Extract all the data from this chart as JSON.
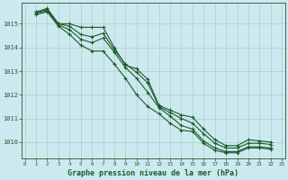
{
  "title": "Graphe pression niveau de la mer (hPa)",
  "background_color": "#cde9f0",
  "grid_color": "#b0d4c8",
  "line_color": "#1a5c2a",
  "ylim": [
    1009.3,
    1015.9
  ],
  "xlim": [
    -0.3,
    23.3
  ],
  "yticks": [
    1010,
    1011,
    1012,
    1013,
    1014,
    1015
  ],
  "xticks": [
    0,
    1,
    2,
    3,
    4,
    5,
    6,
    7,
    8,
    9,
    10,
    11,
    12,
    13,
    14,
    15,
    16,
    17,
    18,
    19,
    20,
    21,
    22,
    23
  ],
  "series": [
    {
      "x": [
        1,
        2,
        3,
        4,
        5,
        6,
        7,
        8,
        9,
        10,
        11,
        12,
        13,
        14,
        15,
        16,
        17,
        18,
        19,
        20,
        21,
        22
      ],
      "y": [
        1015.5,
        1015.65,
        1015.0,
        1015.0,
        1014.85,
        1014.85,
        1014.85,
        1014.0,
        1013.25,
        1013.1,
        1012.65,
        1011.55,
        1011.35,
        1011.15,
        1011.05,
        1010.55,
        1010.1,
        1009.85,
        1009.85,
        1010.1,
        1010.05,
        1010.0
      ]
    },
    {
      "x": [
        1,
        2,
        3,
        4,
        5,
        6,
        7,
        8,
        9,
        10,
        11,
        12,
        13,
        14,
        15,
        16,
        17,
        18,
        19,
        20,
        21,
        22
      ],
      "y": [
        1015.5,
        1015.6,
        1015.0,
        1014.9,
        1014.55,
        1014.45,
        1014.6,
        1013.9,
        1013.3,
        1012.95,
        1012.5,
        1011.5,
        1011.25,
        1011.0,
        1010.8,
        1010.35,
        1009.95,
        1009.75,
        1009.75,
        1009.95,
        1009.95,
        1009.9
      ]
    },
    {
      "x": [
        1,
        2,
        3,
        4,
        5,
        6,
        7,
        8,
        9,
        10,
        11,
        12,
        13,
        14,
        15,
        16,
        17,
        18,
        19,
        20,
        21,
        22
      ],
      "y": [
        1015.45,
        1015.55,
        1014.95,
        1014.75,
        1014.35,
        1014.2,
        1014.4,
        1013.8,
        1013.15,
        1012.7,
        1012.1,
        1011.45,
        1011.1,
        1010.7,
        1010.55,
        1010.05,
        1009.75,
        1009.6,
        1009.6,
        1009.8,
        1009.8,
        1009.75
      ]
    },
    {
      "x": [
        1,
        2,
        3,
        4,
        5,
        6,
        7,
        8,
        9,
        10,
        11,
        12,
        13,
        14,
        15,
        16,
        17,
        18,
        19,
        20,
        21,
        22
      ],
      "y": [
        1015.4,
        1015.5,
        1014.9,
        1014.55,
        1014.1,
        1013.85,
        1013.85,
        1013.3,
        1012.7,
        1012.0,
        1011.5,
        1011.2,
        1010.8,
        1010.5,
        1010.45,
        1009.95,
        1009.65,
        1009.55,
        1009.55,
        1009.75,
        1009.75,
        1009.7
      ]
    }
  ]
}
